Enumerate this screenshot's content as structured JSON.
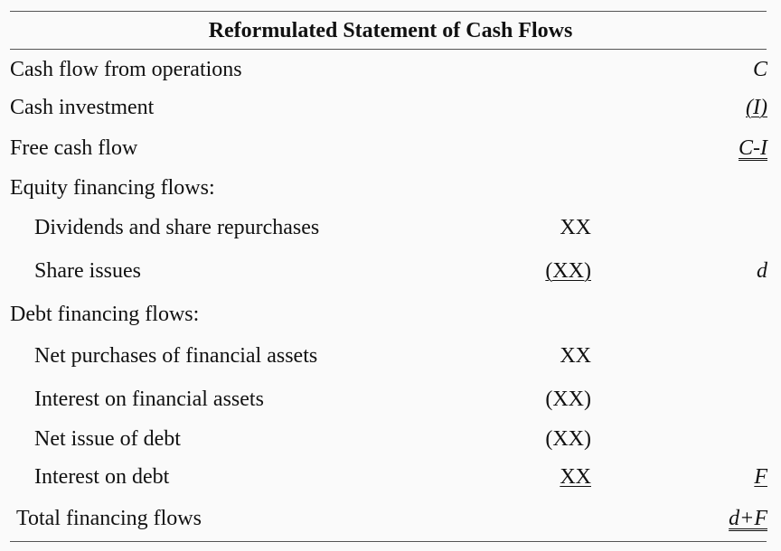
{
  "title": "Reformulated Statement of Cash Flows",
  "rows": [
    {
      "label": "Cash flow from operations",
      "col1": "",
      "col2": "C"
    },
    {
      "label": "Cash investment",
      "col1": "",
      "col2": "(I)"
    },
    {
      "label": "Free cash flow",
      "col1": "",
      "col2": "C-I"
    },
    {
      "label": "Equity financing flows:",
      "col1": "",
      "col2": ""
    },
    {
      "label": "Dividends and share repurchases",
      "col1": "XX",
      "col2": ""
    },
    {
      "label": "Share issues",
      "col1": "(XX)",
      "col2": "d"
    },
    {
      "label": "Debt financing flows:",
      "col1": "",
      "col2": ""
    },
    {
      "label": "Net purchases of financial assets",
      "col1": "XX",
      "col2": ""
    },
    {
      "label": "Interest on financial assets",
      "col1": "(XX)",
      "col2": ""
    },
    {
      "label": "Net issue of debt",
      "col1": "(XX)",
      "col2": ""
    },
    {
      "label": "Interest on debt",
      "col1": "XX",
      "col2": "F"
    },
    {
      "label": "Total financing flows",
      "col1": "",
      "col2": "d+F"
    }
  ]
}
